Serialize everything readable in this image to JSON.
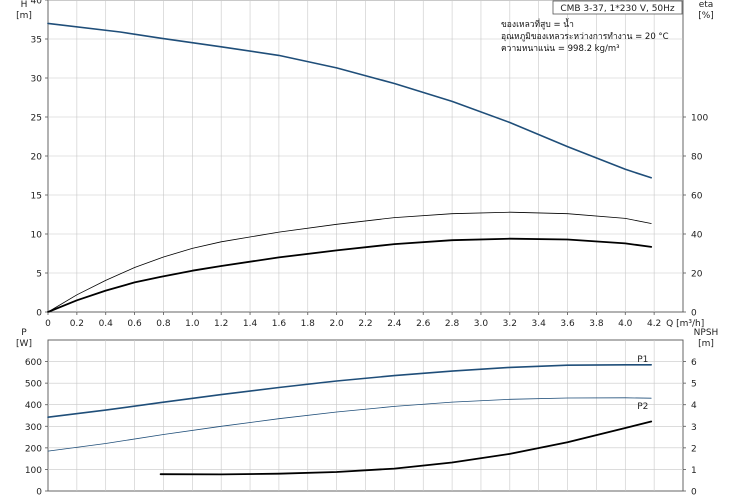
{
  "chart_data": [
    {
      "type": "line",
      "name": "pump-curve-head-efficiency",
      "title": "",
      "legend_box": "CMB 3-37, 1*230 V, 50Hz",
      "annotations": [
        "ของเหลวที่สูบ = น้ำ",
        "อุณหภูมิของเหลวระหว่างการทำงาน = 20 °C",
        "ความหนาแน่น = 998.2 kg/m³"
      ],
      "x_axis": {
        "label": "Q [m³/h]",
        "range": [
          0,
          4.4
        ],
        "ticks": [
          "0",
          "0.2",
          "0.4",
          "0.6",
          "0.8",
          "1.0",
          "1.2",
          "1.4",
          "1.6",
          "1.8",
          "2.0",
          "2.2",
          "2.4",
          "2.6",
          "2.8",
          "3.0",
          "3.2",
          "3.4",
          "3.6",
          "3.8",
          "4.0",
          "4.2"
        ]
      },
      "y_left": {
        "label_top": "H",
        "label_unit": "[m]",
        "range": [
          0,
          40
        ],
        "ticks": [
          "0",
          "5",
          "10",
          "15",
          "20",
          "25",
          "30",
          "35",
          "40"
        ]
      },
      "y_right": {
        "label_top": "eta",
        "label_unit": "[%]",
        "range": [
          0,
          160
        ],
        "ticks": [
          "0",
          "20",
          "40",
          "60",
          "80",
          "100"
        ]
      },
      "grid": true,
      "series": [
        {
          "axis": "left",
          "color": "#1f4e79",
          "width": 1.6,
          "x": [
            0,
            0.5,
            0.78,
            1.2,
            1.6,
            2.0,
            2.4,
            2.8,
            3.2,
            3.6,
            4.0,
            4.18
          ],
          "y": [
            37.0,
            35.9,
            35.1,
            34.0,
            32.9,
            31.3,
            29.3,
            27.0,
            24.3,
            21.2,
            18.3,
            17.2
          ]
        },
        {
          "axis": "right",
          "color": "#000000",
          "width": 0.8,
          "x": [
            0,
            0.2,
            0.4,
            0.6,
            0.8,
            1.0,
            1.2,
            1.6,
            2.0,
            2.4,
            2.8,
            3.2,
            3.6,
            4.0,
            4.18
          ],
          "y": [
            0,
            8.8,
            16.2,
            22.8,
            28.2,
            32.6,
            36.0,
            41.0,
            45.0,
            48.4,
            50.4,
            51.2,
            50.4,
            48.0,
            45.4
          ]
        },
        {
          "axis": "right",
          "color": "#000000",
          "width": 1.8,
          "x": [
            0,
            0.2,
            0.4,
            0.6,
            0.78,
            1.0,
            1.2,
            1.6,
            2.0,
            2.4,
            2.8,
            3.2,
            3.6,
            4.0,
            4.18
          ],
          "y": [
            0,
            6.0,
            11.0,
            15.2,
            18.0,
            21.2,
            23.6,
            28.0,
            31.6,
            34.8,
            36.8,
            37.6,
            37.2,
            35.2,
            33.4
          ]
        }
      ]
    },
    {
      "type": "line",
      "name": "pump-curve-power-npsh",
      "title": "",
      "x_axis": {
        "range": [
          0,
          4.4
        ]
      },
      "y_left": {
        "label_top": "P",
        "label_unit": "[W]",
        "range": [
          0,
          700
        ],
        "ticks": [
          "0",
          "100",
          "200",
          "300",
          "400",
          "500",
          "600"
        ]
      },
      "y_right": {
        "label_top": "NPSH",
        "label_unit": "[m]",
        "range": [
          0,
          7
        ],
        "ticks": [
          "0",
          "1",
          "2",
          "3",
          "4",
          "5",
          "6"
        ]
      },
      "grid": true,
      "series": [
        {
          "name": "P1",
          "axis": "left",
          "color": "#1f4e79",
          "width": 1.6,
          "x": [
            0,
            0.4,
            0.78,
            1.2,
            1.6,
            2.0,
            2.4,
            2.8,
            3.2,
            3.6,
            4.0,
            4.18
          ],
          "y": [
            342,
            375,
            410,
            447,
            480,
            510,
            535,
            556,
            573,
            583,
            585,
            585
          ]
        },
        {
          "name": "P2",
          "axis": "left",
          "color": "#1f4e79",
          "width": 0.8,
          "x": [
            0,
            0.4,
            0.8,
            1.2,
            1.6,
            2.0,
            2.4,
            2.8,
            3.2,
            3.6,
            4.0,
            4.18
          ],
          "y": [
            185,
            220,
            262,
            300,
            335,
            366,
            392,
            412,
            425,
            431,
            432,
            430
          ]
        },
        {
          "axis": "right",
          "color": "#000000",
          "width": 1.8,
          "x": [
            0.78,
            1.2,
            1.6,
            2.0,
            2.4,
            2.8,
            3.2,
            3.6,
            4.0,
            4.18
          ],
          "y": [
            0.78,
            0.77,
            0.8,
            0.88,
            1.04,
            1.32,
            1.72,
            2.26,
            2.92,
            3.22
          ]
        }
      ]
    }
  ]
}
